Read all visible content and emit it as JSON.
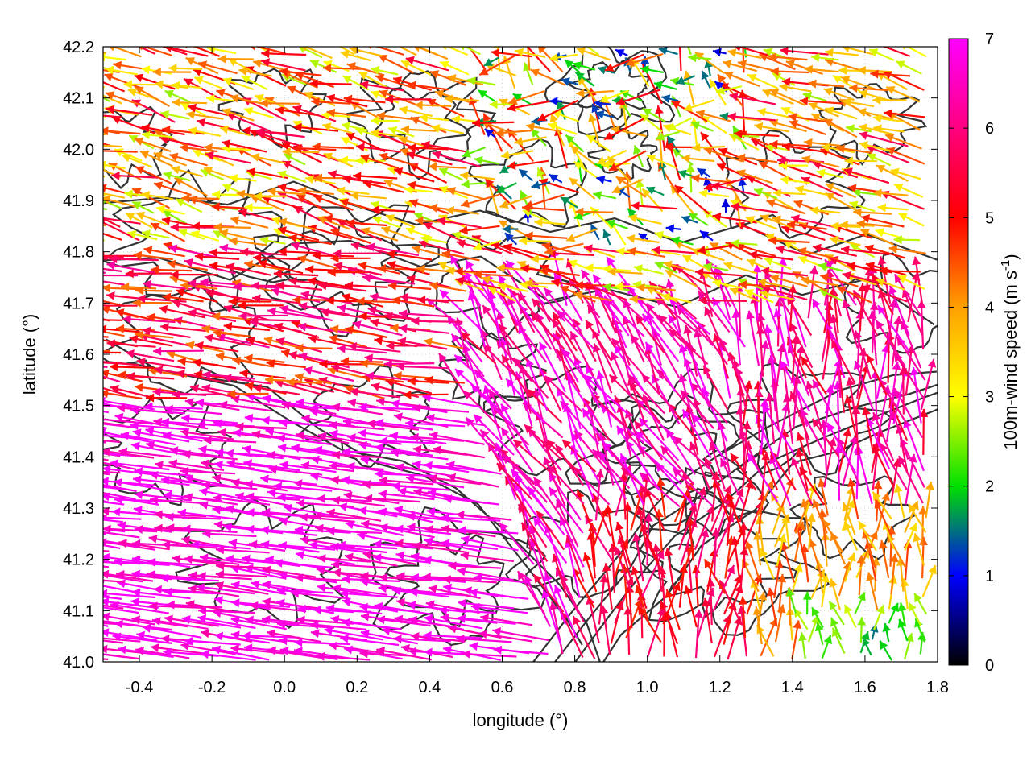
{
  "chart_data": {
    "type": "quiver",
    "title": "",
    "xlabel": "longitude (°)",
    "ylabel": "latitude (°)",
    "xlim": [
      -0.5,
      1.8
    ],
    "ylim": [
      41.0,
      42.2
    ],
    "xticks": [
      "-0.4",
      "-0.2",
      "0.0",
      "0.2",
      "0.4",
      "0.6",
      "0.8",
      "1.0",
      "1.2",
      "1.4",
      "1.6",
      "1.8"
    ],
    "yticks": [
      "41.0",
      "41.1",
      "41.2",
      "41.3",
      "41.4",
      "41.5",
      "41.6",
      "41.7",
      "41.8",
      "41.9",
      "42.0",
      "42.1",
      "42.2"
    ],
    "grid": true,
    "colorbar": {
      "label_main": "100m-wind speed (m s",
      "label_sup": "-1",
      "label_close": ")",
      "range": [
        0,
        7
      ],
      "ticks": [
        "0",
        "1",
        "2",
        "3",
        "4",
        "5",
        "6",
        "7"
      ],
      "colors": [
        "#000000",
        "#0000ff",
        "#00e000",
        "#ffff00",
        "#ffa000",
        "#ff0000",
        "#ff00ff"
      ]
    },
    "wind_field_regions": [
      {
        "region": "northwest",
        "lon": [
          -0.5,
          0.5
        ],
        "lat": [
          41.8,
          42.2
        ],
        "speed_range": [
          2,
          5.5
        ],
        "flow": "westward"
      },
      {
        "region": "north-central",
        "lon": [
          0.5,
          1.3
        ],
        "lat": [
          41.8,
          42.2
        ],
        "speed_range": [
          0.5,
          5
        ],
        "flow": "mixed"
      },
      {
        "region": "northeast",
        "lon": [
          1.3,
          1.8
        ],
        "lat": [
          41.7,
          42.2
        ],
        "speed_range": [
          2,
          5.5
        ],
        "flow": "west-northwestward"
      },
      {
        "region": "west-central",
        "lon": [
          -0.5,
          0.4
        ],
        "lat": [
          41.5,
          41.8
        ],
        "speed_range": [
          4,
          6
        ],
        "flow": "westward"
      },
      {
        "region": "southwest",
        "lon": [
          -0.5,
          0.7
        ],
        "lat": [
          41.0,
          41.5
        ],
        "speed_range": [
          6,
          7
        ],
        "flow": "west-northwestward"
      },
      {
        "region": "center",
        "lon": [
          0.5,
          1.2
        ],
        "lat": [
          41.3,
          41.7
        ],
        "speed_range": [
          5,
          7
        ],
        "flow": "northwestward"
      },
      {
        "region": "east",
        "lon": [
          1.2,
          1.8
        ],
        "lat": [
          41.3,
          41.7
        ],
        "speed_range": [
          5,
          7
        ],
        "flow": "northward"
      },
      {
        "region": "southeast",
        "lon": [
          0.9,
          1.8
        ],
        "lat": [
          41.0,
          41.3
        ],
        "speed_range": [
          1.5,
          5
        ],
        "flow": "northward"
      }
    ],
    "contours": "terrain height isolines (dark gray)"
  }
}
